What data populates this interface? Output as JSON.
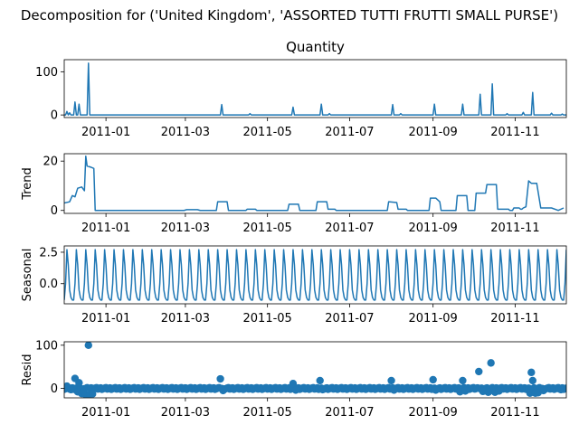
{
  "figure": {
    "suptitle": "Decomposition for ('United Kingdom', 'ASSORTED TUTTI FRUTTI SMALL PURSE')"
  },
  "chart_data": [
    {
      "id": "observed",
      "type": "line",
      "title": "Quantity",
      "ylabel": "",
      "xlim": [
        "2010-12-01",
        "2011-12-09"
      ],
      "ylim": [
        -6,
        128
      ],
      "yticks": [
        0,
        100
      ],
      "ytick_labels": [
        "0",
        "100"
      ],
      "xticks": [
        "2011-01-01",
        "2011-03-01",
        "2011-05-01",
        "2011-07-01",
        "2011-09-01",
        "2011-11-01"
      ],
      "xtick_labels": [
        "2011-01",
        "2011-03",
        "2011-05",
        "2011-07",
        "2011-09",
        "2011-11"
      ],
      "baseline": 0,
      "spikes": [
        {
          "date": "2010-12-03",
          "value": 8
        },
        {
          "date": "2010-12-05",
          "value": 5
        },
        {
          "date": "2010-12-09",
          "value": 30
        },
        {
          "date": "2010-12-12",
          "value": 25
        },
        {
          "date": "2010-12-19",
          "value": 120
        },
        {
          "date": "2011-03-28",
          "value": 24
        },
        {
          "date": "2011-04-18",
          "value": 3
        },
        {
          "date": "2011-05-20",
          "value": 18
        },
        {
          "date": "2011-06-10",
          "value": 25
        },
        {
          "date": "2011-06-16",
          "value": 3
        },
        {
          "date": "2011-08-02",
          "value": 24
        },
        {
          "date": "2011-08-08",
          "value": 3
        },
        {
          "date": "2011-09-02",
          "value": 25
        },
        {
          "date": "2011-09-23",
          "value": 25
        },
        {
          "date": "2011-10-06",
          "value": 48
        },
        {
          "date": "2011-10-15",
          "value": 72
        },
        {
          "date": "2011-10-26",
          "value": 3
        },
        {
          "date": "2011-11-07",
          "value": 6
        },
        {
          "date": "2011-11-14",
          "value": 52
        },
        {
          "date": "2011-11-28",
          "value": 4
        },
        {
          "date": "2011-12-06",
          "value": 2
        }
      ]
    },
    {
      "id": "trend",
      "type": "line",
      "title": "",
      "ylabel": "Trend",
      "xlim": [
        "2010-12-01",
        "2011-12-09"
      ],
      "ylim": [
        -1.2,
        23
      ],
      "yticks": [
        0,
        20
      ],
      "ytick_labels": [
        "0",
        "20"
      ],
      "xticks": [
        "2011-01-01",
        "2011-03-01",
        "2011-05-01",
        "2011-07-01",
        "2011-09-01",
        "2011-11-01"
      ],
      "xtick_labels": [
        "2011-01",
        "2011-03",
        "2011-05",
        "2011-07",
        "2011-09",
        "2011-11"
      ],
      "points": [
        [
          "2010-12-01",
          3
        ],
        [
          "2010-12-05",
          3.5
        ],
        [
          "2010-12-07",
          6
        ],
        [
          "2010-12-09",
          5.5
        ],
        [
          "2010-12-11",
          9
        ],
        [
          "2010-12-14",
          9.5
        ],
        [
          "2010-12-16",
          8
        ],
        [
          "2010-12-17",
          22
        ],
        [
          "2010-12-18",
          18
        ],
        [
          "2010-12-21",
          17.5
        ],
        [
          "2010-12-23",
          17
        ],
        [
          "2010-12-24",
          0
        ],
        [
          "2011-02-28",
          0
        ],
        [
          "2011-03-02",
          0.3
        ],
        [
          "2011-03-10",
          0.3
        ],
        [
          "2011-03-12",
          0
        ],
        [
          "2011-03-24",
          0
        ],
        [
          "2011-03-25",
          3.5
        ],
        [
          "2011-04-01",
          3.5
        ],
        [
          "2011-04-02",
          0
        ],
        [
          "2011-04-15",
          0
        ],
        [
          "2011-04-16",
          0.5
        ],
        [
          "2011-04-22",
          0.5
        ],
        [
          "2011-04-23",
          0
        ],
        [
          "2011-05-16",
          0
        ],
        [
          "2011-05-17",
          2.5
        ],
        [
          "2011-05-24",
          2.5
        ],
        [
          "2011-05-25",
          0
        ],
        [
          "2011-06-06",
          0
        ],
        [
          "2011-06-07",
          3.5
        ],
        [
          "2011-06-14",
          3.5
        ],
        [
          "2011-06-15",
          0.5
        ],
        [
          "2011-06-20",
          0.5
        ],
        [
          "2011-06-21",
          0
        ],
        [
          "2011-07-29",
          0
        ],
        [
          "2011-07-30",
          3.5
        ],
        [
          "2011-08-05",
          3.2
        ],
        [
          "2011-08-06",
          0.5
        ],
        [
          "2011-08-12",
          0.5
        ],
        [
          "2011-08-13",
          0
        ],
        [
          "2011-08-29",
          0
        ],
        [
          "2011-08-30",
          5
        ],
        [
          "2011-09-03",
          5
        ],
        [
          "2011-09-06",
          3.5
        ],
        [
          "2011-09-07",
          0
        ],
        [
          "2011-09-18",
          0
        ],
        [
          "2011-09-19",
          6
        ],
        [
          "2011-09-26",
          6
        ],
        [
          "2011-09-27",
          0
        ],
        [
          "2011-10-02",
          0
        ],
        [
          "2011-10-03",
          7
        ],
        [
          "2011-10-10",
          7
        ],
        [
          "2011-10-11",
          10.5
        ],
        [
          "2011-10-18",
          10.5
        ],
        [
          "2011-10-19",
          0.5
        ],
        [
          "2011-10-26",
          0.5
        ],
        [
          "2011-10-27",
          0.5
        ],
        [
          "2011-10-28",
          0
        ],
        [
          "2011-10-30",
          0
        ],
        [
          "2011-10-31",
          1
        ],
        [
          "2011-11-04",
          1
        ],
        [
          "2011-11-05",
          0.5
        ],
        [
          "2011-11-06",
          0.5
        ],
        [
          "2011-11-07",
          1
        ],
        [
          "2011-11-09",
          1.5
        ],
        [
          "2011-11-11",
          12
        ],
        [
          "2011-11-13",
          11
        ],
        [
          "2011-11-17",
          11
        ],
        [
          "2011-11-20",
          1
        ],
        [
          "2011-11-24",
          1
        ],
        [
          "2011-11-28",
          1
        ],
        [
          "2011-12-03",
          0
        ],
        [
          "2011-12-07",
          1
        ]
      ]
    },
    {
      "id": "seasonal",
      "type": "line",
      "title": "",
      "ylabel": "Seasonal",
      "xlim": [
        "2010-12-01",
        "2011-12-09"
      ],
      "ylim": [
        -1.6,
        3.0
      ],
      "yticks": [
        0,
        2.5
      ],
      "ytick_labels": [
        "0.0",
        "2.5"
      ],
      "xticks": [
        "2011-01-01",
        "2011-03-01",
        "2011-05-01",
        "2011-07-01",
        "2011-09-01",
        "2011-11-01"
      ],
      "xtick_labels": [
        "2011-01",
        "2011-03",
        "2011-05",
        "2011-07",
        "2011-09",
        "2011-11"
      ],
      "period_days": 7,
      "pattern": [
        -1.3,
        0.0,
        2.7,
        1.5,
        -0.5,
        -1.1,
        -1.3
      ]
    },
    {
      "id": "resid",
      "type": "scatter",
      "title": "",
      "ylabel": "Resid",
      "xlim": [
        "2010-12-01",
        "2011-12-09"
      ],
      "ylim": [
        -22,
        108
      ],
      "yticks": [
        0,
        100
      ],
      "ytick_labels": [
        "0",
        "100"
      ],
      "xticks": [
        "2011-01-01",
        "2011-03-01",
        "2011-05-01",
        "2011-07-01",
        "2011-09-01",
        "2011-11-01"
      ],
      "xtick_labels": [
        "2011-01",
        "2011-03",
        "2011-05",
        "2011-07",
        "2011-09",
        "2011-11"
      ],
      "outliers": [
        [
          "2010-12-03",
          5
        ],
        [
          "2010-12-06",
          -3
        ],
        [
          "2010-12-09",
          23
        ],
        [
          "2010-12-11",
          -8
        ],
        [
          "2010-12-12",
          13
        ],
        [
          "2010-12-14",
          -12
        ],
        [
          "2010-12-15",
          -8
        ],
        [
          "2010-12-17",
          -15
        ],
        [
          "2010-12-19",
          100
        ],
        [
          "2010-12-20",
          -14
        ],
        [
          "2010-12-22",
          -13
        ],
        [
          "2011-03-27",
          22
        ],
        [
          "2011-03-29",
          -5
        ],
        [
          "2011-05-20",
          11
        ],
        [
          "2011-05-22",
          -4
        ],
        [
          "2011-06-09",
          18
        ],
        [
          "2011-06-11",
          -3
        ],
        [
          "2011-08-01",
          18
        ],
        [
          "2011-08-03",
          -4
        ],
        [
          "2011-09-01",
          20
        ],
        [
          "2011-09-03",
          -4
        ],
        [
          "2011-09-23",
          18
        ],
        [
          "2011-09-21",
          -8
        ],
        [
          "2011-09-25",
          -6
        ],
        [
          "2011-10-05",
          39
        ],
        [
          "2011-10-08",
          -7
        ],
        [
          "2011-10-12",
          -9
        ],
        [
          "2011-10-14",
          59
        ],
        [
          "2011-10-17",
          -9
        ],
        [
          "2011-10-20",
          -6
        ],
        [
          "2011-11-13",
          37
        ],
        [
          "2011-11-12",
          -11
        ],
        [
          "2011-11-14",
          18
        ],
        [
          "2011-11-16",
          -11
        ],
        [
          "2011-11-18",
          -10
        ],
        [
          "2011-11-22",
          -5
        ],
        [
          "2011-12-05",
          -3
        ]
      ]
    }
  ]
}
